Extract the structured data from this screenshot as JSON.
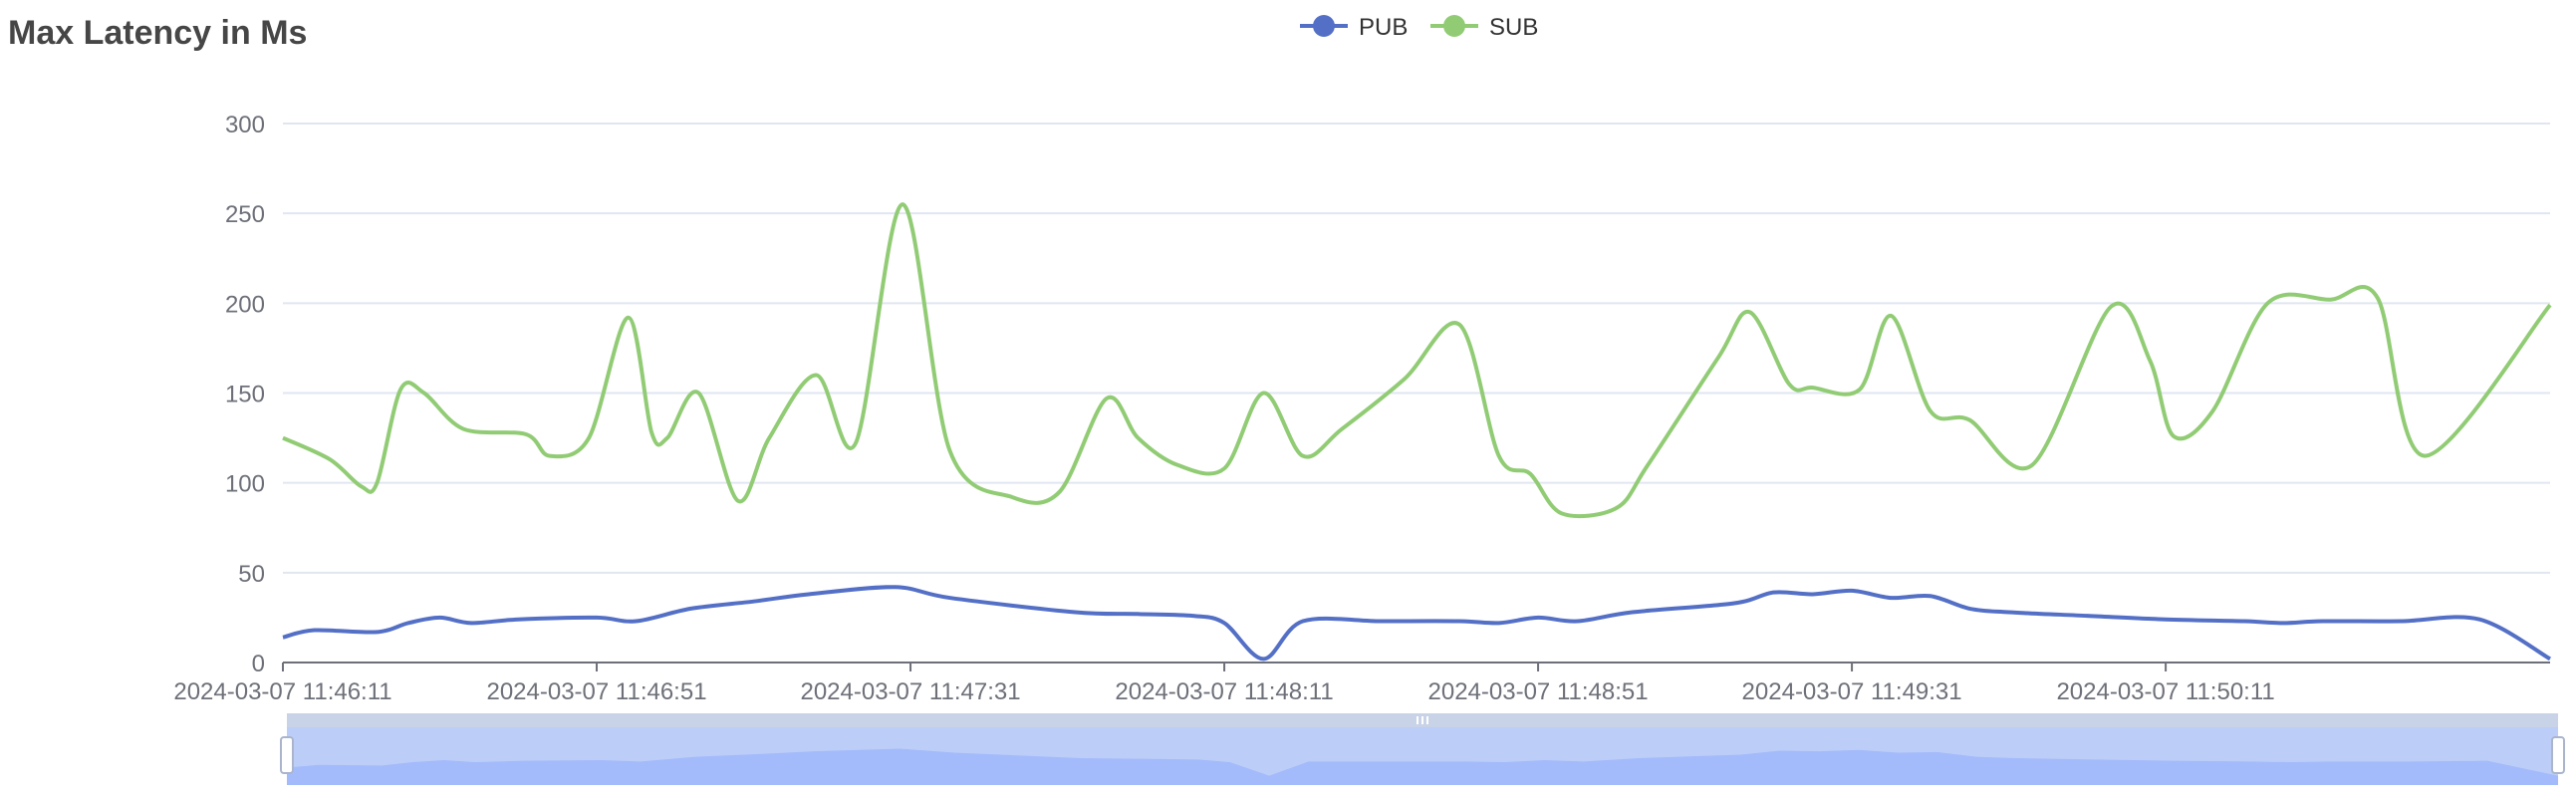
{
  "title": "Max Latency in Ms",
  "colors": {
    "pub": "#5470c6",
    "sub": "#91cc75",
    "grid": "#e0e6f1",
    "axis": "#6e7079",
    "zoom_fill": "#a0b5f5",
    "zoom_bg": "#d6dff0"
  },
  "legend": [
    {
      "key": "pub",
      "label": "PUB"
    },
    {
      "key": "sub",
      "label": "SUB"
    }
  ],
  "chart_data": {
    "type": "line",
    "title": "Max Latency in Ms",
    "xlabel": "",
    "ylabel": "",
    "ylim": [
      0,
      300
    ],
    "y_ticks": [
      0,
      50,
      100,
      150,
      200,
      250,
      300
    ],
    "x_start": "2024-03-07 11:46:11",
    "x_end": "2024-03-07 11:51:00",
    "x_ticks": [
      "2024-03-07 11:46:11",
      "2024-03-07 11:46:51",
      "2024-03-07 11:47:31",
      "2024-03-07 11:48:11",
      "2024-03-07 11:48:51",
      "2024-03-07 11:49:31",
      "2024-03-07 11:50:11"
    ],
    "grid": true,
    "legend_position": "top-center",
    "smooth": true,
    "datazoom": {
      "start": 0,
      "end": 100
    },
    "series": [
      {
        "name": "PUB",
        "key": "pub",
        "values": [
          [
            "2024-03-07 11:46:11",
            14
          ],
          [
            "2024-03-07 11:46:15",
            18
          ],
          [
            "2024-03-07 11:46:23",
            17
          ],
          [
            "2024-03-07 11:46:27",
            22
          ],
          [
            "2024-03-07 11:46:31",
            25
          ],
          [
            "2024-03-07 11:46:35",
            22
          ],
          [
            "2024-03-07 11:46:41",
            24
          ],
          [
            "2024-03-07 11:46:51",
            25
          ],
          [
            "2024-03-07 11:46:56",
            23
          ],
          [
            "2024-03-07 11:47:03",
            30
          ],
          [
            "2024-03-07 11:47:11",
            34
          ],
          [
            "2024-03-07 11:47:18",
            38
          ],
          [
            "2024-03-07 11:47:29",
            42
          ],
          [
            "2024-03-07 11:47:36",
            36
          ],
          [
            "2024-03-07 11:47:52",
            28
          ],
          [
            "2024-03-07 11:48:00",
            27
          ],
          [
            "2024-03-07 11:48:07",
            26
          ],
          [
            "2024-03-07 11:48:11",
            22
          ],
          [
            "2024-03-07 11:48:16",
            2
          ],
          [
            "2024-03-07 11:48:21",
            23
          ],
          [
            "2024-03-07 11:48:31",
            23
          ],
          [
            "2024-03-07 11:48:41",
            23
          ],
          [
            "2024-03-07 11:48:46",
            22
          ],
          [
            "2024-03-07 11:48:51",
            25
          ],
          [
            "2024-03-07 11:48:56",
            23
          ],
          [
            "2024-03-07 11:49:03",
            28
          ],
          [
            "2024-03-07 11:49:16",
            33
          ],
          [
            "2024-03-07 11:49:21",
            39
          ],
          [
            "2024-03-07 11:49:26",
            38
          ],
          [
            "2024-03-07 11:49:31",
            40
          ],
          [
            "2024-03-07 11:49:36",
            36
          ],
          [
            "2024-03-07 11:49:41",
            37
          ],
          [
            "2024-03-07 11:49:46",
            30
          ],
          [
            "2024-03-07 11:49:51",
            28
          ],
          [
            "2024-03-07 11:50:01",
            26
          ],
          [
            "2024-03-07 11:50:11",
            24
          ],
          [
            "2024-03-07 11:50:21",
            23
          ],
          [
            "2024-03-07 11:50:26",
            22
          ],
          [
            "2024-03-07 11:50:31",
            23
          ],
          [
            "2024-03-07 11:50:41",
            23
          ],
          [
            "2024-03-07 11:50:51",
            24
          ],
          [
            "2024-03-07 11:51:00",
            2
          ]
        ]
      },
      {
        "name": "SUB",
        "key": "sub",
        "values": [
          [
            "2024-03-07 11:46:11",
            125
          ],
          [
            "2024-03-07 11:46:17",
            113
          ],
          [
            "2024-03-07 11:46:21",
            98
          ],
          [
            "2024-03-07 11:46:23",
            100
          ],
          [
            "2024-03-07 11:46:26",
            152
          ],
          [
            "2024-03-07 11:46:29",
            150
          ],
          [
            "2024-03-07 11:46:34",
            130
          ],
          [
            "2024-03-07 11:46:42",
            127
          ],
          [
            "2024-03-07 11:46:45",
            115
          ],
          [
            "2024-03-07 11:46:50",
            125
          ],
          [
            "2024-03-07 11:46:55",
            192
          ],
          [
            "2024-03-07 11:46:58",
            128
          ],
          [
            "2024-03-07 11:47:00",
            125
          ],
          [
            "2024-03-07 11:47:04",
            150
          ],
          [
            "2024-03-07 11:47:09",
            90
          ],
          [
            "2024-03-07 11:47:13",
            125
          ],
          [
            "2024-03-07 11:47:19",
            160
          ],
          [
            "2024-03-07 11:47:24",
            122
          ],
          [
            "2024-03-07 11:47:30",
            255
          ],
          [
            "2024-03-07 11:47:36",
            118
          ],
          [
            "2024-03-07 11:47:44",
            92
          ],
          [
            "2024-03-07 11:47:50",
            95
          ],
          [
            "2024-03-07 11:47:56",
            147
          ],
          [
            "2024-03-07 11:48:00",
            125
          ],
          [
            "2024-03-07 11:48:05",
            110
          ],
          [
            "2024-03-07 11:48:11",
            108
          ],
          [
            "2024-03-07 11:48:16",
            150
          ],
          [
            "2024-03-07 11:48:21",
            115
          ],
          [
            "2024-03-07 11:48:26",
            130
          ],
          [
            "2024-03-07 11:48:34",
            158
          ],
          [
            "2024-03-07 11:48:41",
            188
          ],
          [
            "2024-03-07 11:48:46",
            115
          ],
          [
            "2024-03-07 11:48:50",
            105
          ],
          [
            "2024-03-07 11:48:54",
            83
          ],
          [
            "2024-03-07 11:49:01",
            86
          ],
          [
            "2024-03-07 11:49:05",
            110
          ],
          [
            "2024-03-07 11:49:14",
            170
          ],
          [
            "2024-03-07 11:49:18",
            195
          ],
          [
            "2024-03-07 11:49:23",
            155
          ],
          [
            "2024-03-07 11:49:26",
            153
          ],
          [
            "2024-03-07 11:49:32",
            152
          ],
          [
            "2024-03-07 11:49:36",
            193
          ],
          [
            "2024-03-07 11:49:41",
            140
          ],
          [
            "2024-03-07 11:49:46",
            135
          ],
          [
            "2024-03-07 11:49:54",
            110
          ],
          [
            "2024-03-07 11:50:04",
            198
          ],
          [
            "2024-03-07 11:50:09",
            168
          ],
          [
            "2024-03-07 11:50:12",
            126
          ],
          [
            "2024-03-07 11:50:17",
            140
          ],
          [
            "2024-03-07 11:50:24",
            200
          ],
          [
            "2024-03-07 11:50:32",
            202
          ],
          [
            "2024-03-07 11:50:38",
            203
          ],
          [
            "2024-03-07 11:50:44",
            115
          ],
          [
            "2024-03-07 11:51:00",
            199
          ]
        ]
      }
    ]
  }
}
